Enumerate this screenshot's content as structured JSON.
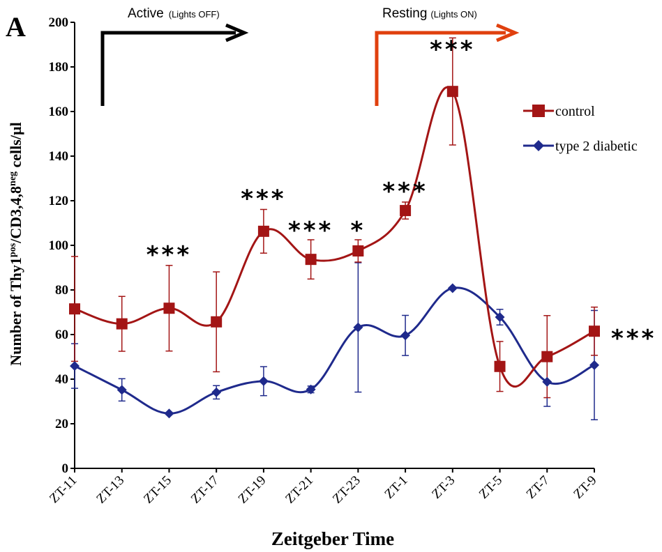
{
  "panel_label": "A",
  "colors": {
    "control": "#a31515",
    "diabetic": "#1f2a8c",
    "active_arrow": "#000000",
    "resting_arrow": "#e0400e"
  },
  "annotations": {
    "active_main": "Active",
    "active_sub": "(Lights OFF)",
    "resting_main": "Resting",
    "resting_sub": "(Lights ON)"
  },
  "chart_data": {
    "type": "line",
    "title": "",
    "xlabel": "Zeitgeber Time",
    "ylabel": "Number of Thy1pos/CD3,4,8neg cells/µl",
    "ylabel_parts": [
      "Number of Thy1",
      "pos",
      "/CD3,4,8",
      "neg",
      " cells/µl"
    ],
    "categories": [
      "ZT-11",
      "ZT-13",
      "ZT-15",
      "ZT-17",
      "ZT-19",
      "ZT-21",
      "ZT-23",
      "ZT-1",
      "ZT-3",
      "ZT-5",
      "ZT-7",
      "ZT-9"
    ],
    "ylim": [
      0,
      200
    ],
    "yticks": [
      0,
      20,
      40,
      60,
      80,
      100,
      120,
      140,
      160,
      180,
      200
    ],
    "grid": false,
    "legend_position": "right",
    "series": [
      {
        "name": "control",
        "key": "control",
        "marker": "square",
        "values": [
          71.5,
          64.8,
          71.8,
          65.7,
          106.3,
          93.7,
          97.5,
          115.6,
          169.0,
          45.7,
          50.1,
          61.5
        ],
        "errors": [
          23.5,
          12.3,
          19.2,
          22.4,
          9.8,
          8.8,
          5.0,
          3.8,
          24.0,
          11.2,
          18.4,
          10.8
        ]
      },
      {
        "name": "type 2 diabetic",
        "key": "diabetic",
        "marker": "diamond",
        "values": [
          45.9,
          35.2,
          24.6,
          34.1,
          39.1,
          35.4,
          63.2,
          59.6,
          80.8,
          67.8,
          38.8,
          46.3
        ],
        "errors": [
          10.0,
          5.0,
          0.5,
          3.0,
          6.5,
          1.5,
          29.0,
          9.0,
          0.5,
          3.5,
          11.0,
          24.5
        ]
      }
    ],
    "significance": [
      {
        "category": "ZT-15",
        "label": "***"
      },
      {
        "category": "ZT-19",
        "label": "***"
      },
      {
        "category": "ZT-21",
        "label": "***"
      },
      {
        "category": "ZT-23",
        "label": "*"
      },
      {
        "category": "ZT-1",
        "label": "***"
      },
      {
        "category": "ZT-3",
        "label": "***"
      },
      {
        "category": "overall",
        "label": "***"
      }
    ]
  }
}
